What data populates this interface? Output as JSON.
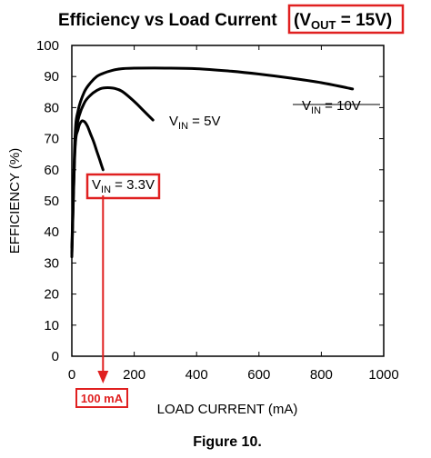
{
  "chart_data": {
    "type": "line",
    "title": "Efficiency vs Load Current",
    "title_highlight": {
      "prefix": "(V",
      "sub": "OUT",
      "suffix": " = 15V)"
    },
    "xlabel": "LOAD CURRENT (mA)",
    "ylabel": "EFFICIENCY (%)",
    "xlim": [
      0,
      1000
    ],
    "ylim": [
      0,
      100
    ],
    "x_ticks": [
      "0",
      "200",
      "400",
      "600",
      "800",
      "1000"
    ],
    "y_ticks": [
      "0",
      "10",
      "20",
      "30",
      "40",
      "50",
      "60",
      "70",
      "80",
      "90",
      "100"
    ],
    "grid": false,
    "series": [
      {
        "label_prefix": "V",
        "label_sub": "IN",
        "label_suffix": " = 10V",
        "x": [
          0,
          10,
          20,
          40,
          60,
          80,
          100,
          130,
          160,
          200,
          300,
          400,
          500,
          600,
          700,
          800,
          900
        ],
        "y": [
          35,
          70,
          79,
          85,
          88,
          90,
          91,
          92,
          92.5,
          92.7,
          92.7,
          92.5,
          91.8,
          90.8,
          89.5,
          88,
          86
        ]
      },
      {
        "label_prefix": "V",
        "label_sub": "IN",
        "label_suffix": " = 5V",
        "x": [
          0,
          10,
          20,
          40,
          60,
          80,
          100,
          130,
          160,
          200,
          230,
          260
        ],
        "y": [
          33,
          67,
          76,
          81.5,
          84,
          85.5,
          86.3,
          86.3,
          85.3,
          82,
          79,
          76
        ]
      },
      {
        "label_prefix": "V",
        "label_sub": "IN",
        "label_suffix": " = 3.3V",
        "x": [
          0,
          10,
          20,
          30,
          40,
          50,
          60,
          70,
          80,
          90,
          100
        ],
        "y": [
          32,
          66,
          73,
          75.5,
          75.5,
          74,
          71.5,
          69,
          66,
          63,
          60
        ]
      }
    ],
    "annotation": {
      "x": 100,
      "label": "100 mA"
    },
    "colors": {
      "curve": "#000000",
      "highlight": "#e02020"
    },
    "caption": "Figure 10."
  }
}
